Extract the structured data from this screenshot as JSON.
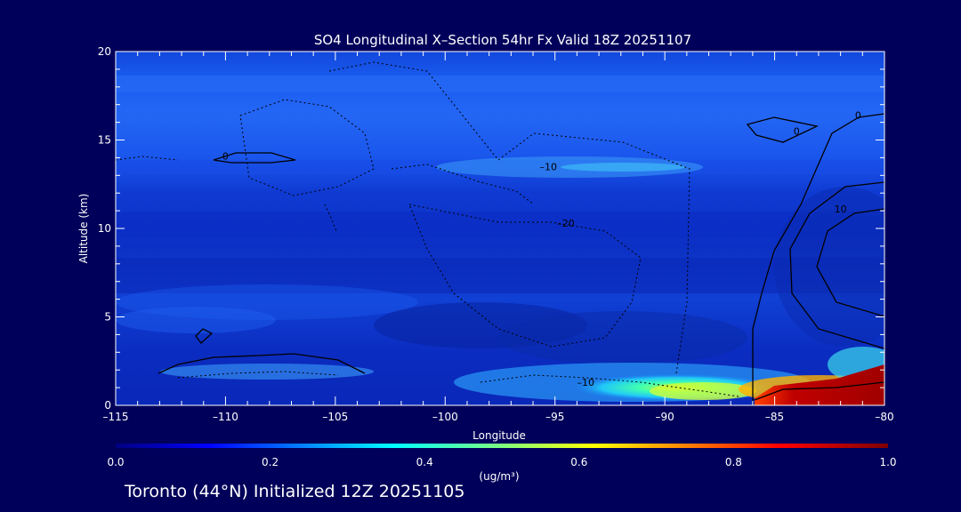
{
  "chart_data": {
    "type": "heatmap",
    "title": "SO4 Longitudinal X–Section 54hr  Fx Valid 18Z 20251107",
    "xlabel": "Longitude",
    "ylabel": "Altitude (km)",
    "xlim": [
      -115,
      -80
    ],
    "ylim": [
      0,
      20
    ],
    "x_ticks": [
      -115,
      -110,
      -105,
      -100,
      -95,
      -90,
      -85,
      -80
    ],
    "x_tick_labels": [
      "–115",
      "–110",
      "–105",
      "–100",
      "–95",
      "–90",
      "–85",
      "–80"
    ],
    "y_ticks": [
      0,
      5,
      10,
      15,
      20
    ],
    "y_tick_labels": [
      "0",
      "5",
      "10",
      "15",
      "20"
    ],
    "colorbar": {
      "min": 0.0,
      "max": 1.0,
      "ticks": [
        0.0,
        0.2,
        0.4,
        0.6,
        0.8,
        1.0
      ],
      "tick_labels": [
        "0.0",
        "0.2",
        "0.4",
        "0.6",
        "0.8",
        "1.0"
      ],
      "unit": "(ug/m³)"
    },
    "contour_labels": [
      {
        "text": "0",
        "lon": -110.0,
        "alt": 13.9
      },
      {
        "text": "0",
        "lon": -84.0,
        "alt": 15.3
      },
      {
        "text": "0",
        "lon": -81.2,
        "alt": 16.2
      },
      {
        "text": "–10",
        "lon": -95.3,
        "alt": 13.3
      },
      {
        "text": "–20",
        "lon": -94.5,
        "alt": 10.1
      },
      {
        "text": "10",
        "lon": -82.0,
        "alt": 10.9
      },
      {
        "text": "–10",
        "lon": -93.6,
        "alt": 1.1
      }
    ]
  },
  "caption": "Toronto (44°N) Initialized 12Z 20251105"
}
